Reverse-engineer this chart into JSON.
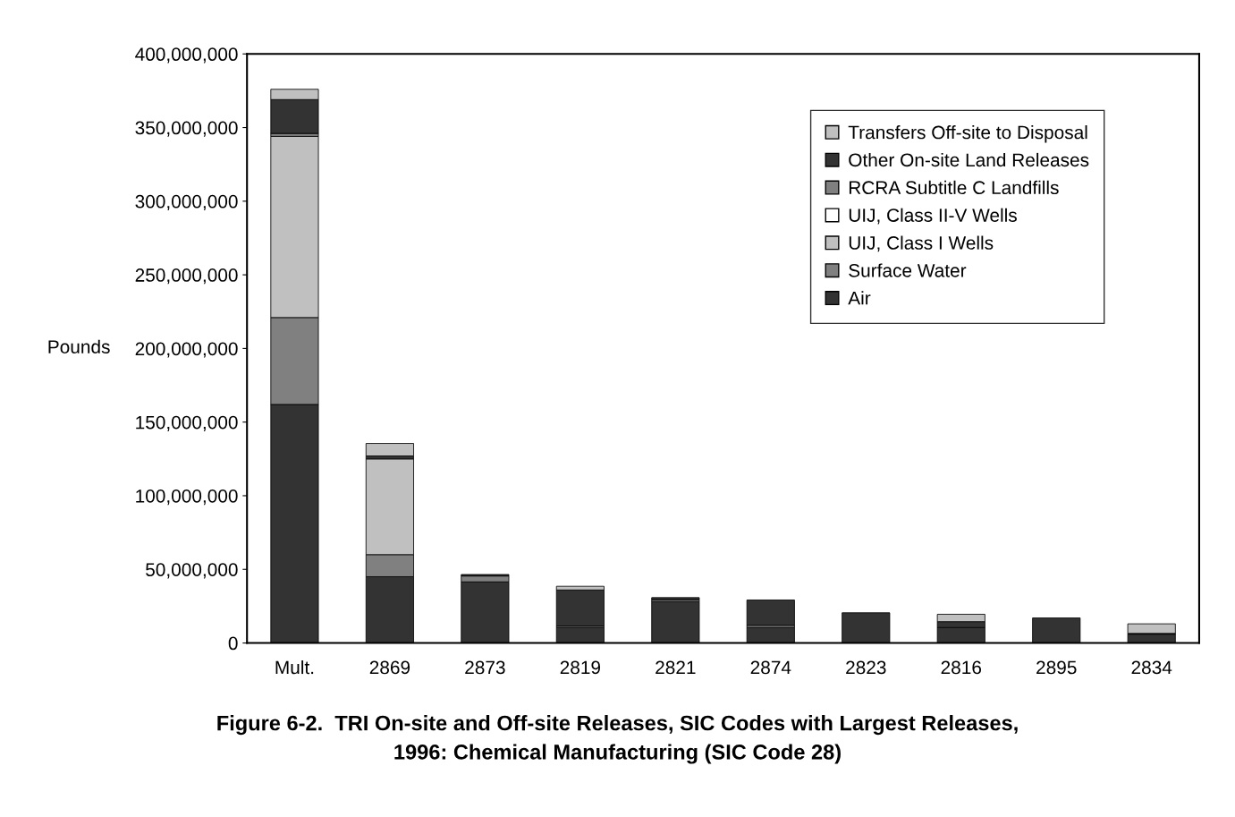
{
  "chart_data": {
    "type": "bar",
    "stacked": true,
    "title": "Figure 6-2.  TRI On-site and Off-site Releases, SIC Codes with Largest Releases,\n1996: Chemical Manufacturing (SIC Code 28)",
    "ylabel": "Pounds",
    "categories": [
      "Mult.",
      "2869",
      "2873",
      "2819",
      "2821",
      "2874",
      "2823",
      "2816",
      "2895",
      "2834"
    ],
    "series": [
      {
        "name": "Air",
        "color": "#333333",
        "values": [
          162000000,
          45000000,
          41500000,
          10500000,
          28000000,
          10500000,
          20500000,
          10500000,
          17000000,
          6000000
        ]
      },
      {
        "name": "Surface Water",
        "color": "#808080",
        "values": [
          59000000,
          15000000,
          4000000,
          1000000,
          1300000,
          1500000,
          null,
          null,
          null,
          null
        ]
      },
      {
        "name": "UIJ, Class I Wells",
        "color": "#c0c0c0",
        "values": [
          123000000,
          65000000,
          null,
          null,
          null,
          null,
          null,
          null,
          null,
          null
        ]
      },
      {
        "name": "UIJ, Class II-V Wells",
        "color": "#ffffff",
        "values": [
          null,
          null,
          null,
          null,
          null,
          null,
          null,
          null,
          null,
          null
        ]
      },
      {
        "name": "RCRA Subtitle C Landfills",
        "color": "#808080",
        "values": [
          2000000,
          null,
          null,
          null,
          null,
          null,
          null,
          null,
          null,
          null
        ]
      },
      {
        "name": "Other On-site Land Releases",
        "color": "#333333",
        "values": [
          23000000,
          2000000,
          1000000,
          24500000,
          1500000,
          17200000,
          null,
          4000000,
          null,
          500000
        ]
      },
      {
        "name": "Transfers Off-site to Disposal",
        "color": "#c0c0c0",
        "values": [
          7000000,
          8500000,
          null,
          2500000,
          null,
          null,
          null,
          5000000,
          null,
          6500000
        ]
      }
    ],
    "ylim": [
      0,
      400000000
    ],
    "yticks": [
      {
        "value": 0,
        "label": "0"
      },
      {
        "value": 50000000,
        "label": "50,000,000"
      },
      {
        "value": 100000000,
        "label": "100,000,000"
      },
      {
        "value": 150000000,
        "label": "150,000,000"
      },
      {
        "value": 200000000,
        "label": "200,000,000"
      },
      {
        "value": 250000000,
        "label": "250,000,000"
      },
      {
        "value": 300000000,
        "label": "300,000,000"
      },
      {
        "value": 350000000,
        "label": "350,000,000"
      },
      {
        "value": 400000000,
        "label": "400,000,000"
      }
    ],
    "grid": false,
    "legend": "top right"
  }
}
